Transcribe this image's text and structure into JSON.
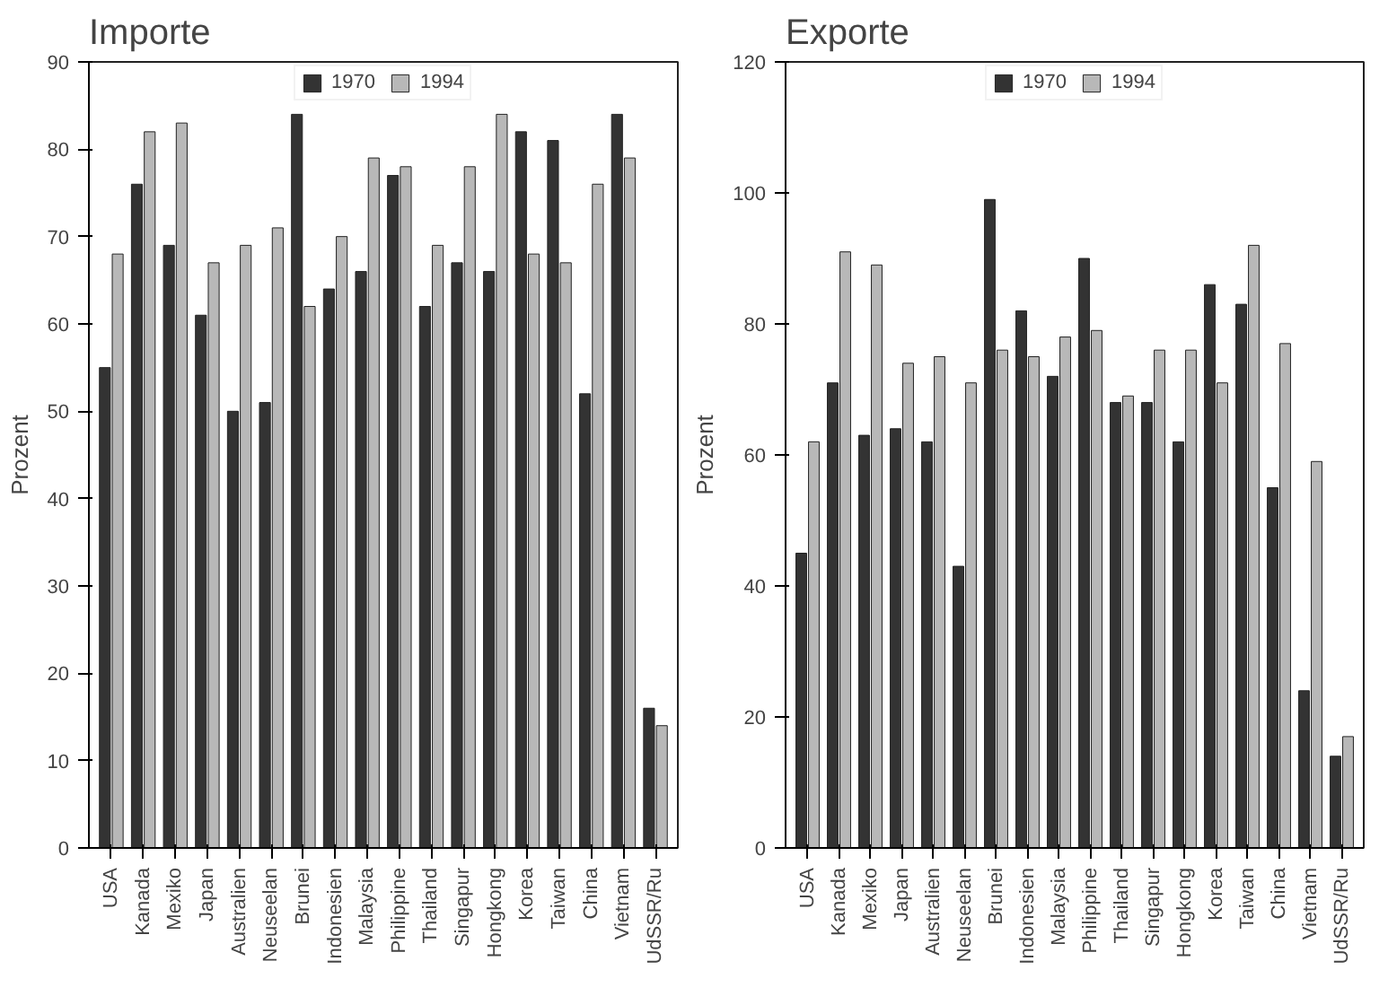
{
  "chart_data": [
    {
      "type": "bar",
      "title": "Importe",
      "ylabel": "Prozent",
      "legend": "top",
      "grid": false,
      "categories": [
        "USA",
        "Kanada",
        "Mexiko",
        "Japan",
        "Australien",
        "Neuseelan",
        "Brunei",
        "Indonesien",
        "Malaysia",
        "Philippine",
        "Thailand",
        "Singapur",
        "Hongkong",
        "Korea",
        "Taiwan",
        "China",
        "Vietnam",
        "UdSSR/Ru"
      ],
      "ylim": [
        0,
        90
      ],
      "yticks": [
        0,
        10,
        20,
        30,
        40,
        50,
        60,
        70,
        80,
        90
      ],
      "series": [
        {
          "name": "1970",
          "color": "#333333",
          "values": [
            55,
            76,
            69,
            61,
            50,
            51,
            84,
            64,
            66,
            77,
            62,
            67,
            66,
            82,
            81,
            52,
            84,
            16
          ]
        },
        {
          "name": "1994",
          "color": "#b8b8b8",
          "values": [
            68,
            82,
            83,
            67,
            69,
            71,
            62,
            70,
            79,
            78,
            69,
            78,
            84,
            68,
            67,
            76,
            79,
            14
          ]
        }
      ]
    },
    {
      "type": "bar",
      "title": "Exporte",
      "ylabel": "Prozent",
      "legend": "top",
      "grid": false,
      "categories": [
        "USA",
        "Kanada",
        "Mexiko",
        "Japan",
        "Australien",
        "Neuseelan",
        "Brunei",
        "Indonesien",
        "Malaysia",
        "Philippine",
        "Thailand",
        "Singapur",
        "Hongkong",
        "Korea",
        "Taiwan",
        "China",
        "Vietnam",
        "UdSSR/Ru"
      ],
      "ylim": [
        0,
        120
      ],
      "yticks": [
        0,
        20,
        40,
        60,
        80,
        100,
        120
      ],
      "series": [
        {
          "name": "1970",
          "color": "#333333",
          "values": [
            45,
            71,
            63,
            64,
            62,
            43,
            99,
            82,
            72,
            90,
            68,
            68,
            62,
            86,
            83,
            55,
            24,
            14
          ]
        },
        {
          "name": "1994",
          "color": "#b8b8b8",
          "values": [
            62,
            91,
            89,
            74,
            75,
            71,
            76,
            75,
            78,
            79,
            69,
            76,
            76,
            71,
            92,
            77,
            59,
            17
          ]
        }
      ]
    }
  ]
}
